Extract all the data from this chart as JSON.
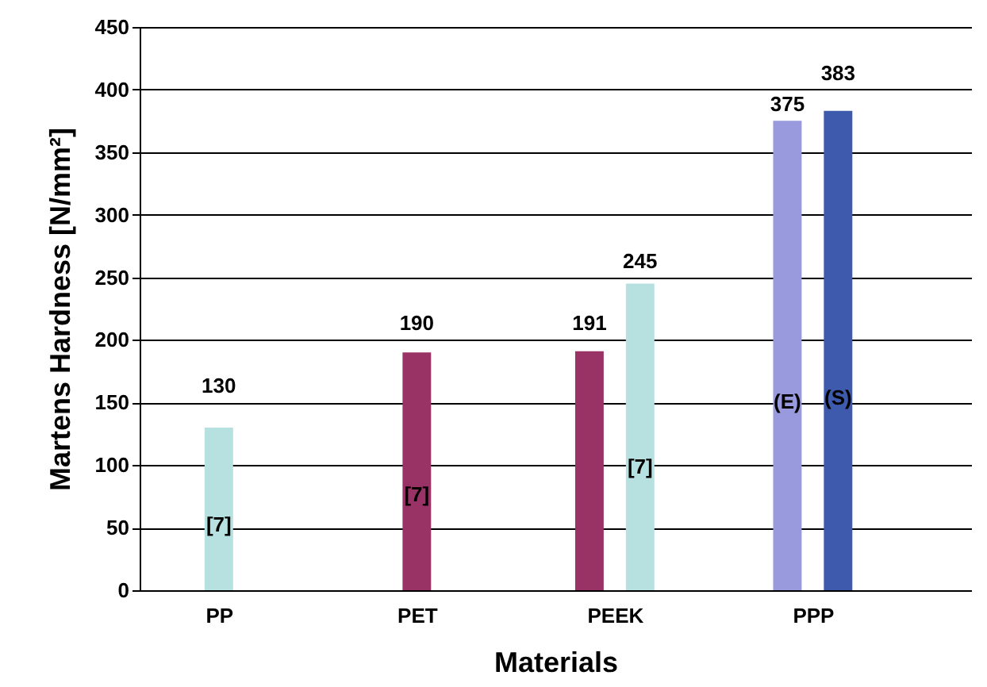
{
  "chart_data": {
    "type": "bar",
    "xlabel": "Materials",
    "ylabel": "Martens Hardness [N/mm²]",
    "categories": [
      "PP",
      "PET",
      "PEEK",
      "PPP"
    ],
    "series": [
      {
        "color": "#993366",
        "values": [
          null,
          190,
          191,
          null
        ]
      },
      {
        "color": "#b7e0e0",
        "values": [
          130,
          null,
          245,
          null
        ]
      },
      {
        "color": "#9999dd",
        "values": [
          null,
          null,
          null,
          375
        ]
      },
      {
        "color": "#3e5aad",
        "values": [
          null,
          null,
          null,
          383
        ]
      }
    ],
    "ylim": [
      0,
      450
    ],
    "yticks": [
      0,
      50,
      100,
      150,
      200,
      250,
      300,
      350,
      400,
      450
    ],
    "grid": "y",
    "data_labels": true,
    "annotations": [
      "[7]",
      "[7]",
      "[7]",
      "(E)",
      "(S)"
    ]
  }
}
